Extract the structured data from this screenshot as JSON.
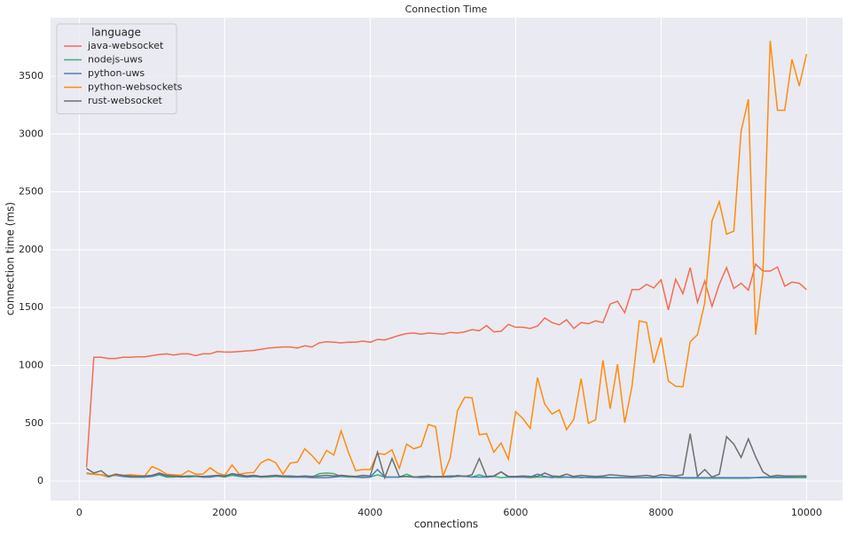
{
  "chart_data": {
    "type": "line",
    "title": "Connection Time",
    "xlabel": "connections",
    "ylabel": "connection time (ms)",
    "legend_title": "language",
    "legend": "upper left",
    "grid": true,
    "x": [
      100,
      200,
      300,
      400,
      500,
      600,
      700,
      800,
      900,
      1000,
      1100,
      1200,
      1300,
      1400,
      1500,
      1600,
      1700,
      1800,
      1900,
      2000,
      2100,
      2200,
      2300,
      2400,
      2500,
      2600,
      2700,
      2800,
      2900,
      3000,
      3100,
      3200,
      3300,
      3400,
      3500,
      3600,
      3700,
      3800,
      3900,
      4000,
      4100,
      4200,
      4300,
      4400,
      4500,
      4600,
      4700,
      4800,
      4900,
      5000,
      5100,
      5200,
      5300,
      5400,
      5500,
      5600,
      5700,
      5800,
      5900,
      6000,
      6100,
      6200,
      6300,
      6400,
      6500,
      6600,
      6700,
      6800,
      6900,
      7000,
      7100,
      7200,
      7300,
      7400,
      7500,
      7600,
      7700,
      7800,
      7900,
      8000,
      8100,
      8200,
      8300,
      8400,
      8500,
      8600,
      8700,
      8800,
      8900,
      9000,
      9100,
      9200,
      9300,
      9400,
      9500,
      9600,
      9700,
      9800,
      9900,
      10000
    ],
    "xlim": [
      -395,
      10495
    ],
    "xticks": [
      0,
      2000,
      4000,
      6000,
      8000,
      10000
    ],
    "ylim": [
      -168,
      4005
    ],
    "yticks": [
      0,
      500,
      1000,
      1500,
      2000,
      2500,
      3000,
      3500
    ],
    "series": [
      {
        "name": "java-websocket",
        "color": "#f46d50",
        "values": [
          120,
          1070,
          1070,
          1060,
          1060,
          1070,
          1070,
          1075,
          1075,
          1085,
          1095,
          1100,
          1090,
          1100,
          1100,
          1085,
          1100,
          1100,
          1120,
          1115,
          1115,
          1120,
          1125,
          1130,
          1140,
          1150,
          1155,
          1160,
          1160,
          1150,
          1170,
          1160,
          1195,
          1205,
          1200,
          1195,
          1200,
          1200,
          1210,
          1200,
          1225,
          1220,
          1240,
          1260,
          1275,
          1280,
          1270,
          1280,
          1275,
          1270,
          1285,
          1280,
          1290,
          1310,
          1300,
          1345,
          1290,
          1295,
          1355,
          1330,
          1330,
          1320,
          1340,
          1410,
          1370,
          1350,
          1395,
          1320,
          1370,
          1360,
          1385,
          1370,
          1530,
          1555,
          1455,
          1655,
          1655,
          1700,
          1670,
          1740,
          1480,
          1745,
          1620,
          1845,
          1545,
          1730,
          1510,
          1700,
          1845,
          1665,
          1710,
          1650,
          1875,
          1815,
          1815,
          1850,
          1685,
          1720,
          1710,
          1655
        ]
      },
      {
        "name": "nodejs-uws",
        "color": "#3bb374",
        "values": [
          70,
          60,
          55,
          35,
          55,
          40,
          35,
          35,
          35,
          40,
          55,
          35,
          35,
          40,
          35,
          40,
          35,
          35,
          45,
          35,
          50,
          40,
          35,
          40,
          35,
          35,
          40,
          35,
          35,
          35,
          35,
          35,
          65,
          70,
          65,
          40,
          35,
          35,
          30,
          35,
          55,
          35,
          35,
          35,
          60,
          35,
          30,
          35,
          40,
          40,
          35,
          50,
          40,
          35,
          55,
          35,
          40,
          30,
          35,
          35,
          35,
          30,
          35,
          35,
          35,
          30,
          35,
          30,
          35,
          30,
          30,
          35,
          30,
          30,
          30,
          30,
          30,
          30,
          30,
          30,
          30,
          30,
          25,
          25,
          25,
          25,
          25,
          25,
          25,
          25,
          25,
          25,
          30,
          30,
          30,
          30,
          30,
          30,
          30,
          30
        ]
      },
      {
        "name": "python-uws",
        "color": "#4c80b8",
        "values": [
          65,
          60,
          55,
          45,
          50,
          40,
          35,
          35,
          35,
          40,
          60,
          40,
          40,
          35,
          40,
          45,
          35,
          35,
          45,
          40,
          60,
          45,
          35,
          40,
          35,
          40,
          40,
          40,
          35,
          35,
          35,
          30,
          30,
          30,
          35,
          40,
          40,
          35,
          35,
          35,
          100,
          35,
          35,
          35,
          40,
          35,
          35,
          35,
          35,
          35,
          35,
          40,
          45,
          35,
          35,
          35,
          40,
          80,
          35,
          35,
          35,
          35,
          60,
          40,
          30,
          40,
          35,
          35,
          30,
          35,
          30,
          30,
          30,
          30,
          30,
          30,
          30,
          30,
          30,
          35,
          30,
          35,
          30,
          30,
          30,
          30,
          30,
          30,
          30,
          30,
          30,
          30,
          30,
          35,
          35,
          35,
          35,
          35,
          40,
          40
        ]
      },
      {
        "name": "python-websockets",
        "color": "#ff8c0a",
        "values": [
          65,
          60,
          55,
          40,
          55,
          50,
          55,
          50,
          45,
          125,
          100,
          60,
          55,
          50,
          90,
          60,
          60,
          115,
          70,
          50,
          140,
          60,
          70,
          75,
          160,
          190,
          160,
          60,
          155,
          165,
          280,
          220,
          150,
          265,
          225,
          435,
          250,
          90,
          100,
          100,
          240,
          230,
          270,
          110,
          320,
          280,
          300,
          490,
          470,
          40,
          200,
          610,
          725,
          720,
          400,
          410,
          250,
          330,
          190,
          600,
          540,
          455,
          895,
          665,
          580,
          615,
          445,
          535,
          885,
          500,
          530,
          1045,
          625,
          1010,
          505,
          820,
          1385,
          1370,
          1020,
          1240,
          865,
          820,
          815,
          1205,
          1265,
          1540,
          2250,
          2415,
          2135,
          2160,
          3025,
          3300,
          1265,
          1800,
          3805,
          3205,
          3205,
          3645,
          3415,
          3690
        ]
      },
      {
        "name": "rust-websocket",
        "color": "#6e6e6e",
        "values": [
          110,
          70,
          90,
          40,
          60,
          50,
          45,
          40,
          45,
          50,
          70,
          50,
          45,
          40,
          45,
          45,
          40,
          45,
          50,
          45,
          65,
          55,
          45,
          50,
          40,
          45,
          50,
          45,
          45,
          40,
          45,
          40,
          45,
          50,
          45,
          50,
          45,
          40,
          50,
          45,
          250,
          30,
          195,
          40,
          40,
          35,
          40,
          45,
          35,
          40,
          45,
          45,
          40,
          55,
          195,
          40,
          45,
          80,
          40,
          40,
          45,
          40,
          40,
          70,
          45,
          40,
          60,
          40,
          50,
          45,
          40,
          45,
          55,
          50,
          45,
          40,
          45,
          50,
          40,
          55,
          50,
          45,
          55,
          410,
          40,
          100,
          35,
          60,
          385,
          320,
          205,
          365,
          210,
          80,
          40,
          50,
          45,
          45,
          45,
          45
        ]
      }
    ]
  }
}
